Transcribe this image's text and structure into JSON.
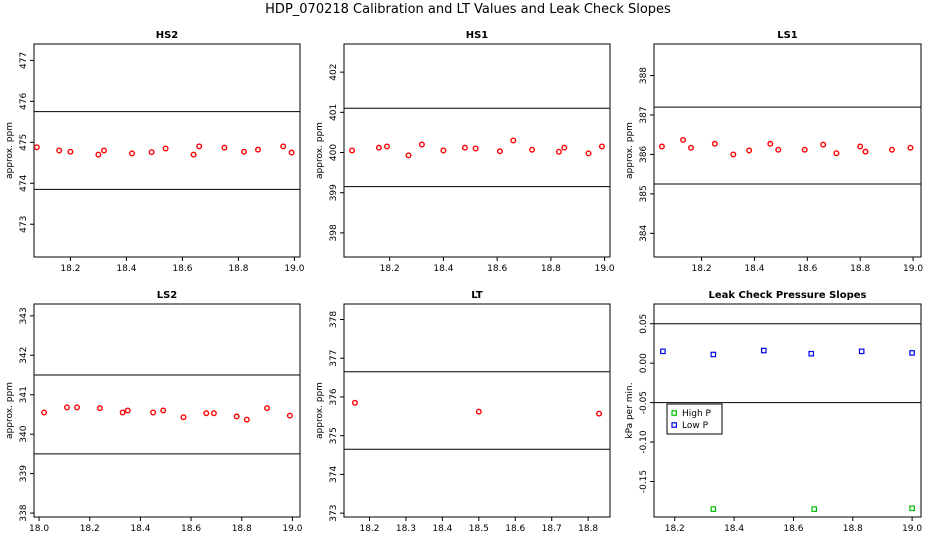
{
  "title": "HDP_070218  Calibration and LT Values and Leak Check Slopes",
  "colors": {
    "points": "#ff0000",
    "high_p": "#00bb00",
    "low_p": "#0000ee",
    "lines": "#000000"
  },
  "chart_data": [
    {
      "type": "scatter",
      "title": "HS2",
      "ylabel": "approx. ppm",
      "xlim": [
        18.07,
        19.02
      ],
      "ylim": [
        472.2,
        477.4
      ],
      "xticks": [
        "18.2",
        "18.4",
        "18.6",
        "18.8",
        "19.0"
      ],
      "yticks": [
        "473",
        "474",
        "475",
        "476",
        "477"
      ],
      "hlines": [
        473.85,
        475.75
      ],
      "x": [
        18.08,
        18.16,
        18.2,
        18.3,
        18.32,
        18.42,
        18.49,
        18.54,
        18.64,
        18.66,
        18.75,
        18.82,
        18.87,
        18.96,
        18.99
      ],
      "y": [
        474.88,
        474.8,
        474.77,
        474.7,
        474.8,
        474.73,
        474.76,
        474.85,
        474.7,
        474.9,
        474.87,
        474.77,
        474.82,
        474.9,
        474.75
      ]
    },
    {
      "type": "scatter",
      "title": "HS1",
      "ylabel": "approx. ppm",
      "xlim": [
        18.03,
        19.02
      ],
      "ylim": [
        397.4,
        402.7
      ],
      "xticks": [
        "18.2",
        "18.4",
        "18.6",
        "18.8",
        "19.0"
      ],
      "yticks": [
        "398",
        "399",
        "400",
        "401",
        "402"
      ],
      "hlines": [
        399.15,
        401.1
      ],
      "x": [
        18.06,
        18.16,
        18.19,
        18.27,
        18.32,
        18.4,
        18.48,
        18.52,
        18.61,
        18.66,
        18.73,
        18.83,
        18.85,
        18.94,
        18.99
      ],
      "y": [
        400.05,
        400.12,
        400.15,
        399.93,
        400.2,
        400.05,
        400.12,
        400.1,
        400.03,
        400.3,
        400.07,
        400.02,
        400.12,
        399.98,
        400.15
      ]
    },
    {
      "type": "scatter",
      "title": "LS1",
      "ylabel": "approx. ppm",
      "xlim": [
        18.02,
        19.03
      ],
      "ylim": [
        383.4,
        388.8
      ],
      "xticks": [
        "18.2",
        "18.4",
        "18.6",
        "18.8",
        "19.0"
      ],
      "yticks": [
        "384",
        "385",
        "386",
        "387",
        "388"
      ],
      "hlines": [
        385.25,
        387.2
      ],
      "x": [
        18.05,
        18.13,
        18.16,
        18.25,
        18.32,
        18.38,
        18.46,
        18.49,
        18.59,
        18.66,
        18.71,
        18.8,
        18.82,
        18.92,
        18.99
      ],
      "y": [
        386.2,
        386.37,
        386.17,
        386.27,
        386.0,
        386.1,
        386.27,
        386.12,
        386.12,
        386.25,
        386.03,
        386.2,
        386.07,
        386.12,
        386.17
      ]
    },
    {
      "type": "scatter",
      "title": "LS2",
      "ylabel": "approx. ppm",
      "xlim": [
        17.98,
        19.03
      ],
      "ylim": [
        337.9,
        343.3
      ],
      "xticks": [
        "18.0",
        "18.2",
        "18.4",
        "18.6",
        "18.8",
        "19.0"
      ],
      "yticks": [
        "338",
        "339",
        "340",
        "341",
        "342",
        "343"
      ],
      "hlines": [
        339.5,
        341.5
      ],
      "x": [
        18.02,
        18.11,
        18.15,
        18.24,
        18.33,
        18.35,
        18.45,
        18.49,
        18.57,
        18.66,
        18.69,
        18.78,
        18.82,
        18.9,
        18.99
      ],
      "y": [
        340.55,
        340.68,
        340.68,
        340.66,
        340.55,
        340.6,
        340.55,
        340.6,
        340.43,
        340.53,
        340.53,
        340.45,
        340.37,
        340.66,
        340.47
      ]
    },
    {
      "type": "scatter",
      "title": "LT",
      "ylabel": "approx. ppm",
      "xlim": [
        18.13,
        18.86
      ],
      "ylim": [
        372.9,
        378.4
      ],
      "xticks": [
        "18.2",
        "18.3",
        "18.4",
        "18.5",
        "18.6",
        "18.7",
        "18.8"
      ],
      "yticks": [
        "373",
        "374",
        "375",
        "376",
        "377",
        "378"
      ],
      "hlines": [
        374.65,
        376.65
      ],
      "x": [
        18.16,
        18.5,
        18.83
      ],
      "y": [
        375.85,
        375.62,
        375.57
      ]
    },
    {
      "type": "scatter",
      "title": "Leak Check Pressure Slopes",
      "ylabel": "kPa per min.",
      "xlim": [
        18.13,
        19.03
      ],
      "ylim": [
        -0.195,
        0.075
      ],
      "xticks": [
        "18.2",
        "18.4",
        "18.6",
        "18.8",
        "19.0"
      ],
      "yticks": [
        "-0.15",
        "-0.10",
        "-0.05",
        "0.00",
        "0.05"
      ],
      "hlines": [
        -0.05,
        0.05
      ],
      "series": [
        {
          "name": "High P",
          "x": [
            18.33,
            18.67,
            19.0
          ],
          "y": [
            -0.185,
            -0.185,
            -0.184
          ]
        },
        {
          "name": "Low P",
          "x": [
            18.16,
            18.33,
            18.5,
            18.66,
            18.83,
            19.0
          ],
          "y": [
            0.015,
            0.011,
            0.016,
            0.012,
            0.015,
            0.013
          ]
        }
      ],
      "legend": [
        "High P",
        "Low P"
      ],
      "legend_position": "lower-left"
    }
  ]
}
